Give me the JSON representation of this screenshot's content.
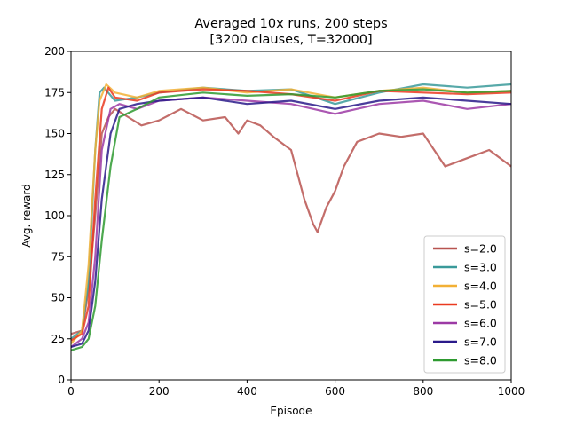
{
  "chart_data": {
    "type": "line",
    "title": "Averaged 10x runs, 200 steps",
    "subtitle": "[3200 clauses, T=32000]",
    "xlabel": "Episode",
    "ylabel": "Avg. reward",
    "xlim": [
      0,
      1000
    ],
    "ylim": [
      0,
      200
    ],
    "xticks": [
      0,
      200,
      400,
      600,
      800,
      1000
    ],
    "yticks": [
      0,
      25,
      50,
      75,
      100,
      125,
      150,
      175,
      200
    ],
    "grid": false,
    "legend_position": "lower-right",
    "series": [
      {
        "name": "s=2.0",
        "color": "#b85450",
        "x": [
          0,
          25,
          40,
          55,
          70,
          85,
          100,
          130,
          160,
          200,
          250,
          300,
          350,
          380,
          400,
          430,
          460,
          500,
          530,
          550,
          560,
          580,
          600,
          620,
          650,
          700,
          750,
          800,
          850,
          900,
          950,
          1000
        ],
        "values": [
          28,
          30,
          55,
          100,
          150,
          160,
          165,
          160,
          155,
          158,
          165,
          158,
          160,
          150,
          158,
          155,
          148,
          140,
          110,
          95,
          90,
          105,
          115,
          130,
          145,
          150,
          148,
          150,
          130,
          135,
          140,
          130
        ]
      },
      {
        "name": "s=3.0",
        "color": "#3a9a9a",
        "x": [
          0,
          25,
          40,
          55,
          65,
          75,
          100,
          150,
          200,
          300,
          400,
          500,
          600,
          700,
          800,
          900,
          1000
        ],
        "values": [
          25,
          30,
          60,
          140,
          175,
          178,
          170,
          172,
          175,
          178,
          176,
          177,
          168,
          175,
          180,
          178,
          180
        ]
      },
      {
        "name": "s=4.0",
        "color": "#f2b035",
        "x": [
          0,
          25,
          40,
          55,
          65,
          80,
          100,
          150,
          200,
          300,
          400,
          500,
          600,
          700,
          800,
          900,
          1000
        ],
        "values": [
          22,
          30,
          70,
          140,
          170,
          180,
          175,
          172,
          176,
          178,
          175,
          177,
          172,
          176,
          178,
          175,
          176
        ]
      },
      {
        "name": "s=5.0",
        "color": "#ea3a20",
        "x": [
          0,
          25,
          40,
          55,
          70,
          85,
          100,
          150,
          200,
          300,
          400,
          500,
          600,
          700,
          800,
          900,
          1000
        ],
        "values": [
          24,
          28,
          45,
          110,
          165,
          178,
          172,
          170,
          175,
          177,
          176,
          174,
          170,
          176,
          175,
          174,
          175
        ]
      },
      {
        "name": "s=6.0",
        "color": "#9c3aa5",
        "x": [
          0,
          25,
          40,
          55,
          70,
          90,
          110,
          150,
          200,
          300,
          400,
          500,
          600,
          700,
          800,
          900,
          1000
        ],
        "values": [
          20,
          25,
          35,
          75,
          140,
          165,
          168,
          165,
          170,
          172,
          170,
          168,
          162,
          168,
          170,
          165,
          168
        ]
      },
      {
        "name": "s=7.0",
        "color": "#2a1a8a",
        "x": [
          0,
          25,
          40,
          55,
          70,
          90,
          110,
          150,
          200,
          300,
          400,
          500,
          600,
          700,
          800,
          900,
          1000
        ],
        "values": [
          20,
          22,
          30,
          60,
          110,
          150,
          165,
          168,
          170,
          172,
          168,
          170,
          165,
          170,
          172,
          170,
          168
        ]
      },
      {
        "name": "s=8.0",
        "color": "#2e9a30",
        "x": [
          0,
          25,
          40,
          55,
          70,
          90,
          110,
          150,
          200,
          300,
          400,
          500,
          600,
          700,
          800,
          900,
          1000
        ],
        "values": [
          18,
          20,
          25,
          45,
          85,
          130,
          160,
          165,
          172,
          175,
          173,
          174,
          172,
          176,
          177,
          175,
          176
        ]
      }
    ]
  }
}
